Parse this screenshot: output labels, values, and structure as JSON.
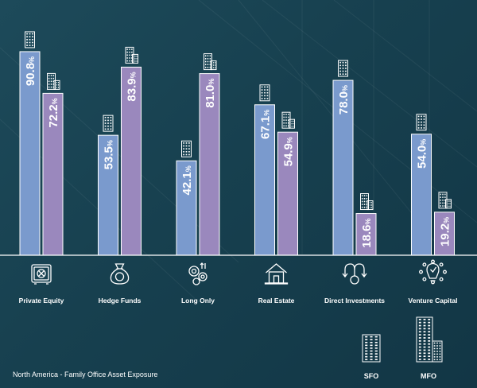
{
  "chart_data": {
    "type": "bar",
    "title": "North America - Family Office Asset Exposure",
    "categories": [
      "Private Equity",
      "Hedge Funds",
      "Long Only",
      "Real Estate",
      "Direct Investments",
      "Venture Capital"
    ],
    "category_icons": [
      "safe-icon",
      "money-bag-icon",
      "gears-icon",
      "house-icon",
      "investment-flow-icon",
      "lightbulb-money-icon"
    ],
    "unit": "%",
    "series": [
      {
        "name": "SFO",
        "values": [
          90.8,
          53.5,
          42.1,
          67.1,
          78.0,
          54.0
        ],
        "color": "#7a9acd"
      },
      {
        "name": "MFO",
        "values": [
          72.2,
          83.9,
          81.0,
          54.9,
          18.6,
          19.2
        ],
        "color": "#9a88bd"
      }
    ],
    "ylim": [
      0,
      100
    ],
    "legend": {
      "placement": "bottom-right",
      "items": [
        "SFO",
        "MFO"
      ]
    }
  },
  "colors": {
    "text": "#ffffff",
    "bar_border": "#ffffff"
  }
}
